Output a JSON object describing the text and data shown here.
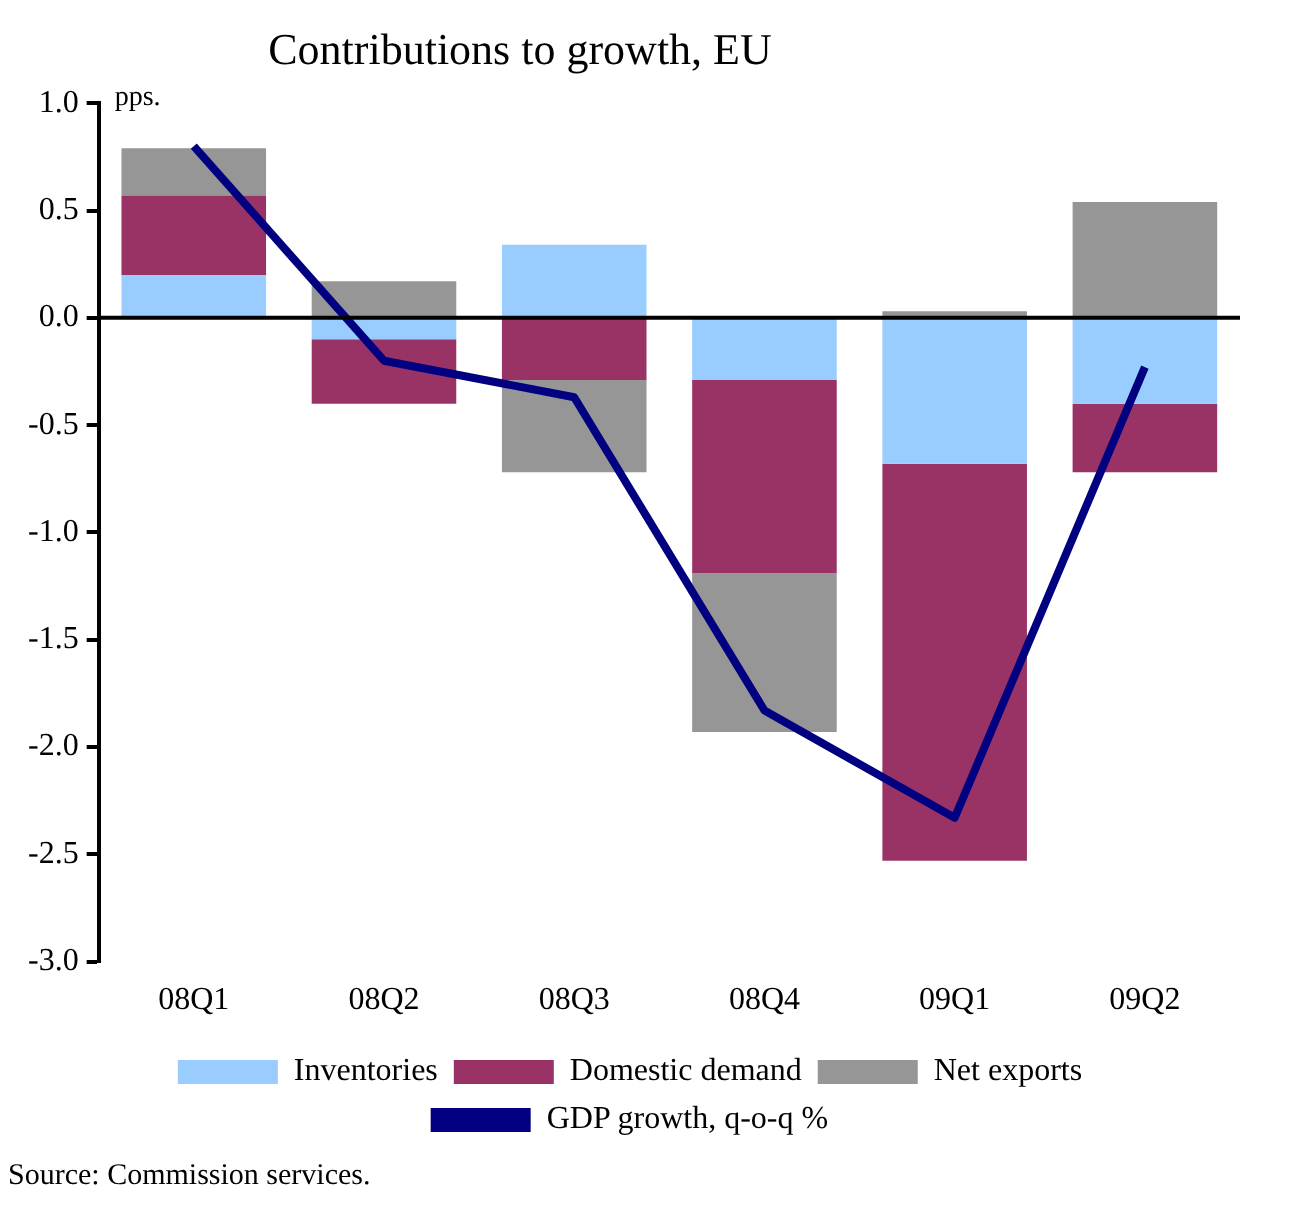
{
  "chart_data": {
    "type": "bar",
    "stacked": true,
    "title": "Contributions to growth, EU",
    "ylabel": "pps.",
    "categories": [
      "08Q1",
      "08Q2",
      "08Q3",
      "08Q4",
      "09Q1",
      "09Q2"
    ],
    "series": [
      {
        "name": "Inventories",
        "color": "#99ccff",
        "values": [
          0.2,
          -0.1,
          0.34,
          -0.29,
          -0.68,
          -0.4
        ]
      },
      {
        "name": "Domestic demand",
        "color": "#993366",
        "values": [
          0.37,
          -0.3,
          -0.29,
          -0.9,
          -1.85,
          -0.32
        ]
      },
      {
        "name": "Net exports",
        "color": "#969696",
        "values": [
          0.22,
          0.17,
          -0.43,
          -0.74,
          0.03,
          0.54
        ]
      },
      {
        "name": "GDP growth, q-o-q %",
        "type": "line",
        "color": "#000080",
        "values": [
          0.8,
          -0.2,
          -0.37,
          -1.83,
          -2.33,
          -0.23
        ]
      }
    ],
    "ylim": [
      -3,
      1
    ],
    "yticks": [
      {
        "value": -3,
        "label": "-3.0"
      },
      {
        "value": -2.5,
        "label": "-2.5"
      },
      {
        "value": -2,
        "label": "-2.0"
      },
      {
        "value": -1.5,
        "label": "-1.5"
      },
      {
        "value": -1,
        "label": "-1.0"
      },
      {
        "value": -0.5,
        "label": "-0.5"
      },
      {
        "value": 0,
        "label": "0.0"
      },
      {
        "value": 0.5,
        "label": "0.5"
      },
      {
        "value": 1,
        "label": "1.0"
      }
    ],
    "ref_lines": [
      {
        "axis": "y",
        "value": 0,
        "color": "#000000"
      }
    ],
    "grid": false,
    "legend": "bottom",
    "marker": "none",
    "annotations": [
      "Source: Commission services."
    ]
  }
}
